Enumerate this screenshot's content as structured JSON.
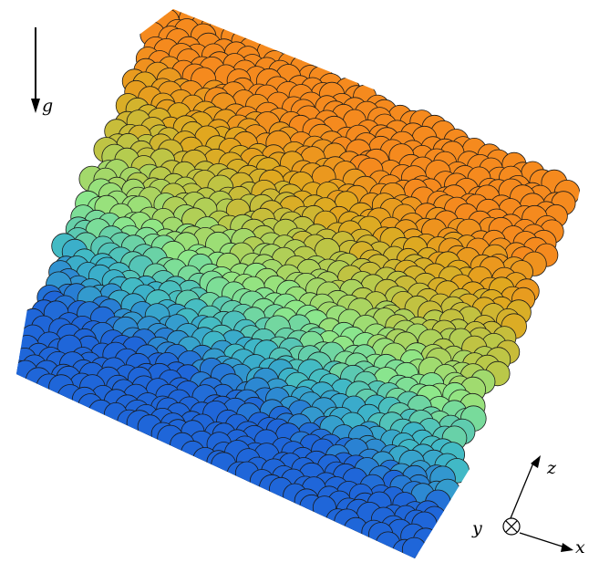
{
  "scene": {
    "palette": {
      "bottom_layer": "#050505",
      "blue": "#1f66d9",
      "cyan": "#3fb8c8",
      "green": "#8ee88a",
      "yellow_green": "#b9c94a",
      "gold": "#e0a81f",
      "orange": "#f58a1e",
      "outline": "#1a1a1a"
    }
  },
  "gravity_indicator": {
    "label": "g"
  },
  "axes_indicator": {
    "x_label": "x",
    "y_label": "y",
    "z_label": "z"
  }
}
